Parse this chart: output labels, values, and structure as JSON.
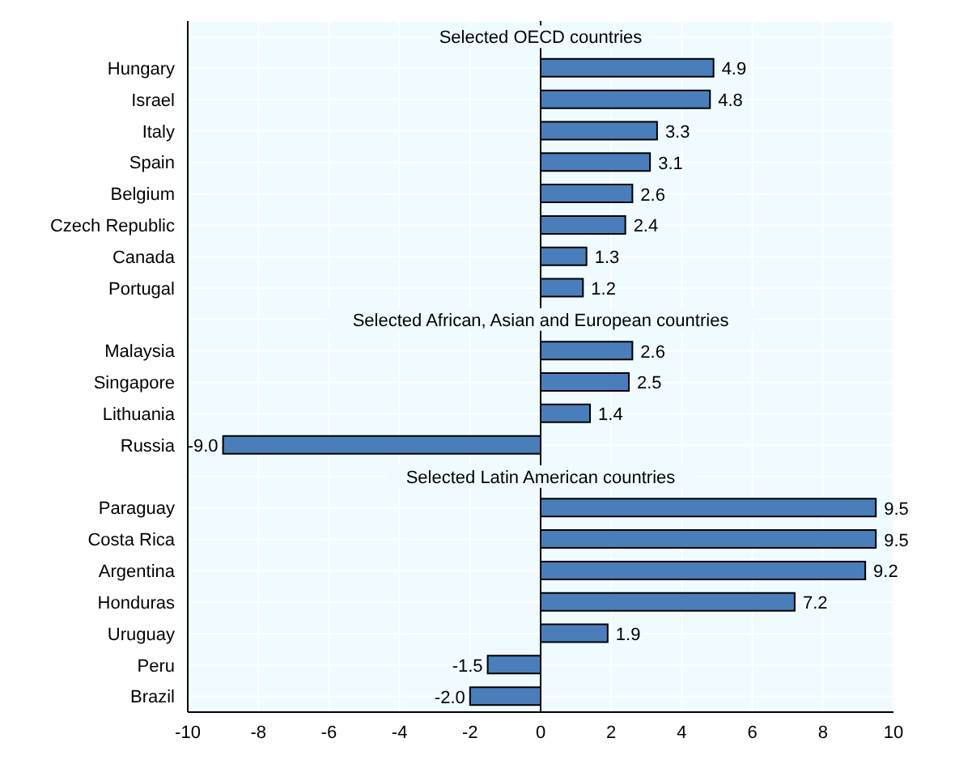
{
  "chart_data": {
    "type": "bar",
    "orientation": "horizontal",
    "categories": [
      null,
      "Hungary",
      "Israel",
      "Italy",
      "Spain",
      "Belgium",
      "Czech Republic",
      "Canada",
      "Portugal",
      null,
      "Malaysia",
      "Singapore",
      "Lithuania",
      "Russia",
      null,
      "Paraguay",
      "Costa Rica",
      "Argentina",
      "Honduras",
      "Uruguay",
      "Peru",
      "Brazil"
    ],
    "values": [
      null,
      4.9,
      4.8,
      3.3,
      3.1,
      2.6,
      2.4,
      1.3,
      1.2,
      null,
      2.6,
      2.5,
      1.4,
      -9.0,
      null,
      9.5,
      9.5,
      9.2,
      7.2,
      1.9,
      -1.5,
      -2.0
    ],
    "value_labels": [
      null,
      "4.9",
      "4.8",
      "3.3",
      "3.1",
      "2.6",
      "2.4",
      "1.3",
      "1.2",
      null,
      "2.6",
      "2.5",
      "1.4",
      "-9.0",
      null,
      "9.5",
      "9.5",
      "9.2",
      "7.2",
      "1.9",
      "-1.5",
      "-2.0"
    ],
    "color": "#4a7ebb",
    "xlim": [
      -10,
      10
    ],
    "xticks": [
      -10,
      -8,
      -6,
      -4,
      -2,
      0,
      2,
      4,
      6,
      8,
      10
    ],
    "ref_lines": [
      {
        "axis": "x",
        "value": 0,
        "color": "#000000"
      }
    ],
    "annotations": [
      "Selected OECD countries",
      "Selected African, Asian and European countries",
      "Selected Latin American countries"
    ],
    "grid": true
  }
}
